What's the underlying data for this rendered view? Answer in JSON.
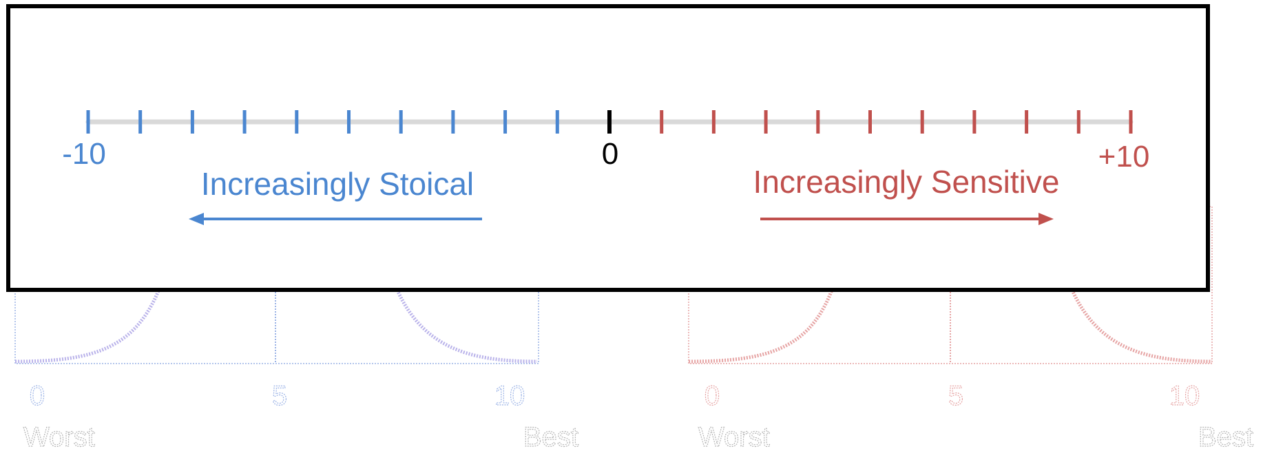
{
  "colors": {
    "stoical": "#4a86d0",
    "sensitive": "#c0504d",
    "neutral": "#000000",
    "track": "#d9d9d9",
    "frame": "#000000",
    "ghost_blue": "#9bb3e6",
    "ghost_red": "#e6a3a3",
    "ghost_gray": "#b5b5b5"
  },
  "scale": {
    "min": -10,
    "max": 10,
    "step": 1,
    "labels": {
      "left": "-10",
      "center": "0",
      "right": "+10"
    }
  },
  "captions": {
    "left": "Increasingly Stoical",
    "right": "Increasingly Sensitive"
  },
  "background": {
    "left_chart": {
      "ticks": [
        "0",
        "5",
        "10"
      ],
      "left_label": "Worst",
      "right_label": "Best"
    },
    "right_chart": {
      "ticks": [
        "0",
        "5",
        "10"
      ],
      "left_label": "Worst",
      "right_label": "Best"
    }
  }
}
